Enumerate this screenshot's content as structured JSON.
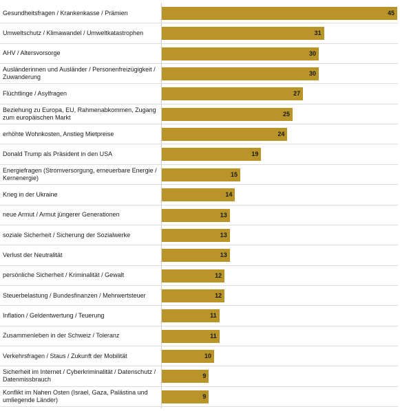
{
  "chart_data": {
    "type": "bar",
    "orientation": "horizontal",
    "bar_color": "#b99529",
    "categories": [
      "Gesundheitsfragen / Krankenkasse / Prämien",
      "Umweltschutz / Klimawandel / Umweltkatastrophen",
      "AHV / Altersvorsorge",
      "Ausländerinnen und Ausländer / Personenfreizügigkeit / Zuwanderung",
      "Flüchtlinge / Asylfragen",
      "Beziehung zu Europa, EU, Rahmenabkommen, Zugang zum europäischen Markt",
      "erhöhte Wohnkosten, Anstieg Mietpreise",
      "Donald Trump als Präsident in den USA",
      "Energiefragen (Stromversorgung, erneuerbare Energie / Kernenergie)",
      "Krieg in der Ukraine",
      "neue Armut / Armut jüngerer Generationen",
      "soziale Sicherheit / Sicherung der Sozialwerke",
      "Verlust der Neutralität",
      "persönliche Sicherheit / Kriminalität / Gewalt",
      "Steuerbelastung / Bundesfinanzen / Mehrwertsteuer",
      "Inflation / Geldentwertung / Teuerung",
      "Zusammenleben in der Schweiz / Toleranz",
      "Verkehrsfragen / Staus / Zukunft der Mobilität",
      "Sicherheit im Internet / Cyberkriminalität / Datenschutz / Datenmissbrauch",
      "Konflikt im Nahen Osten (Israel, Gaza, Palästina und umliegende Länder)"
    ],
    "values": [
      45,
      31,
      30,
      30,
      27,
      25,
      24,
      19,
      15,
      14,
      13,
      13,
      13,
      12,
      12,
      11,
      11,
      10,
      9,
      9
    ],
    "xlim": [
      0,
      45
    ],
    "grid": false,
    "legend": "none",
    "title": "",
    "xlabel": "",
    "ylabel": ""
  }
}
